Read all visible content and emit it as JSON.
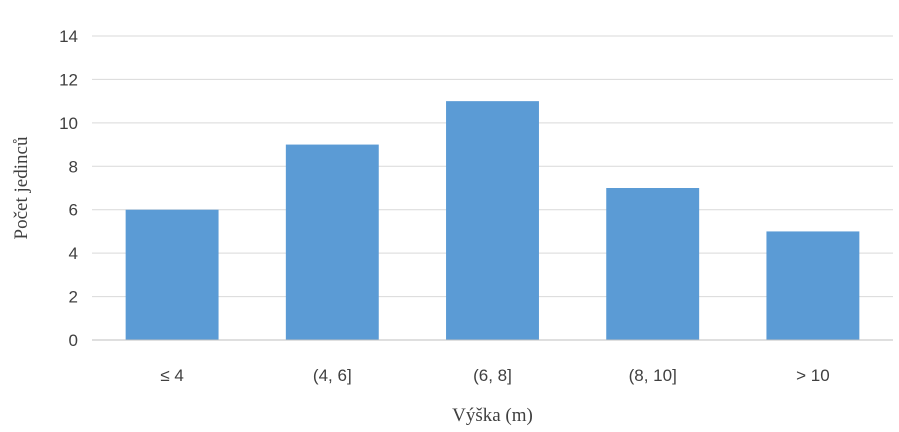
{
  "chart_data": {
    "type": "bar",
    "categories": [
      "≤ 4",
      "(4, 6]",
      "(6, 8]",
      "(8, 10]",
      "> 10"
    ],
    "values": [
      6,
      9,
      11,
      7,
      5
    ],
    "title": "",
    "xlabel": "Výška (m)",
    "ylabel": "Počet jedinců",
    "ylim": [
      0,
      14
    ],
    "yticks": [
      0,
      2,
      4,
      6,
      8,
      10,
      12,
      14
    ],
    "grid": true,
    "bar_color": "#5b9bd5"
  }
}
